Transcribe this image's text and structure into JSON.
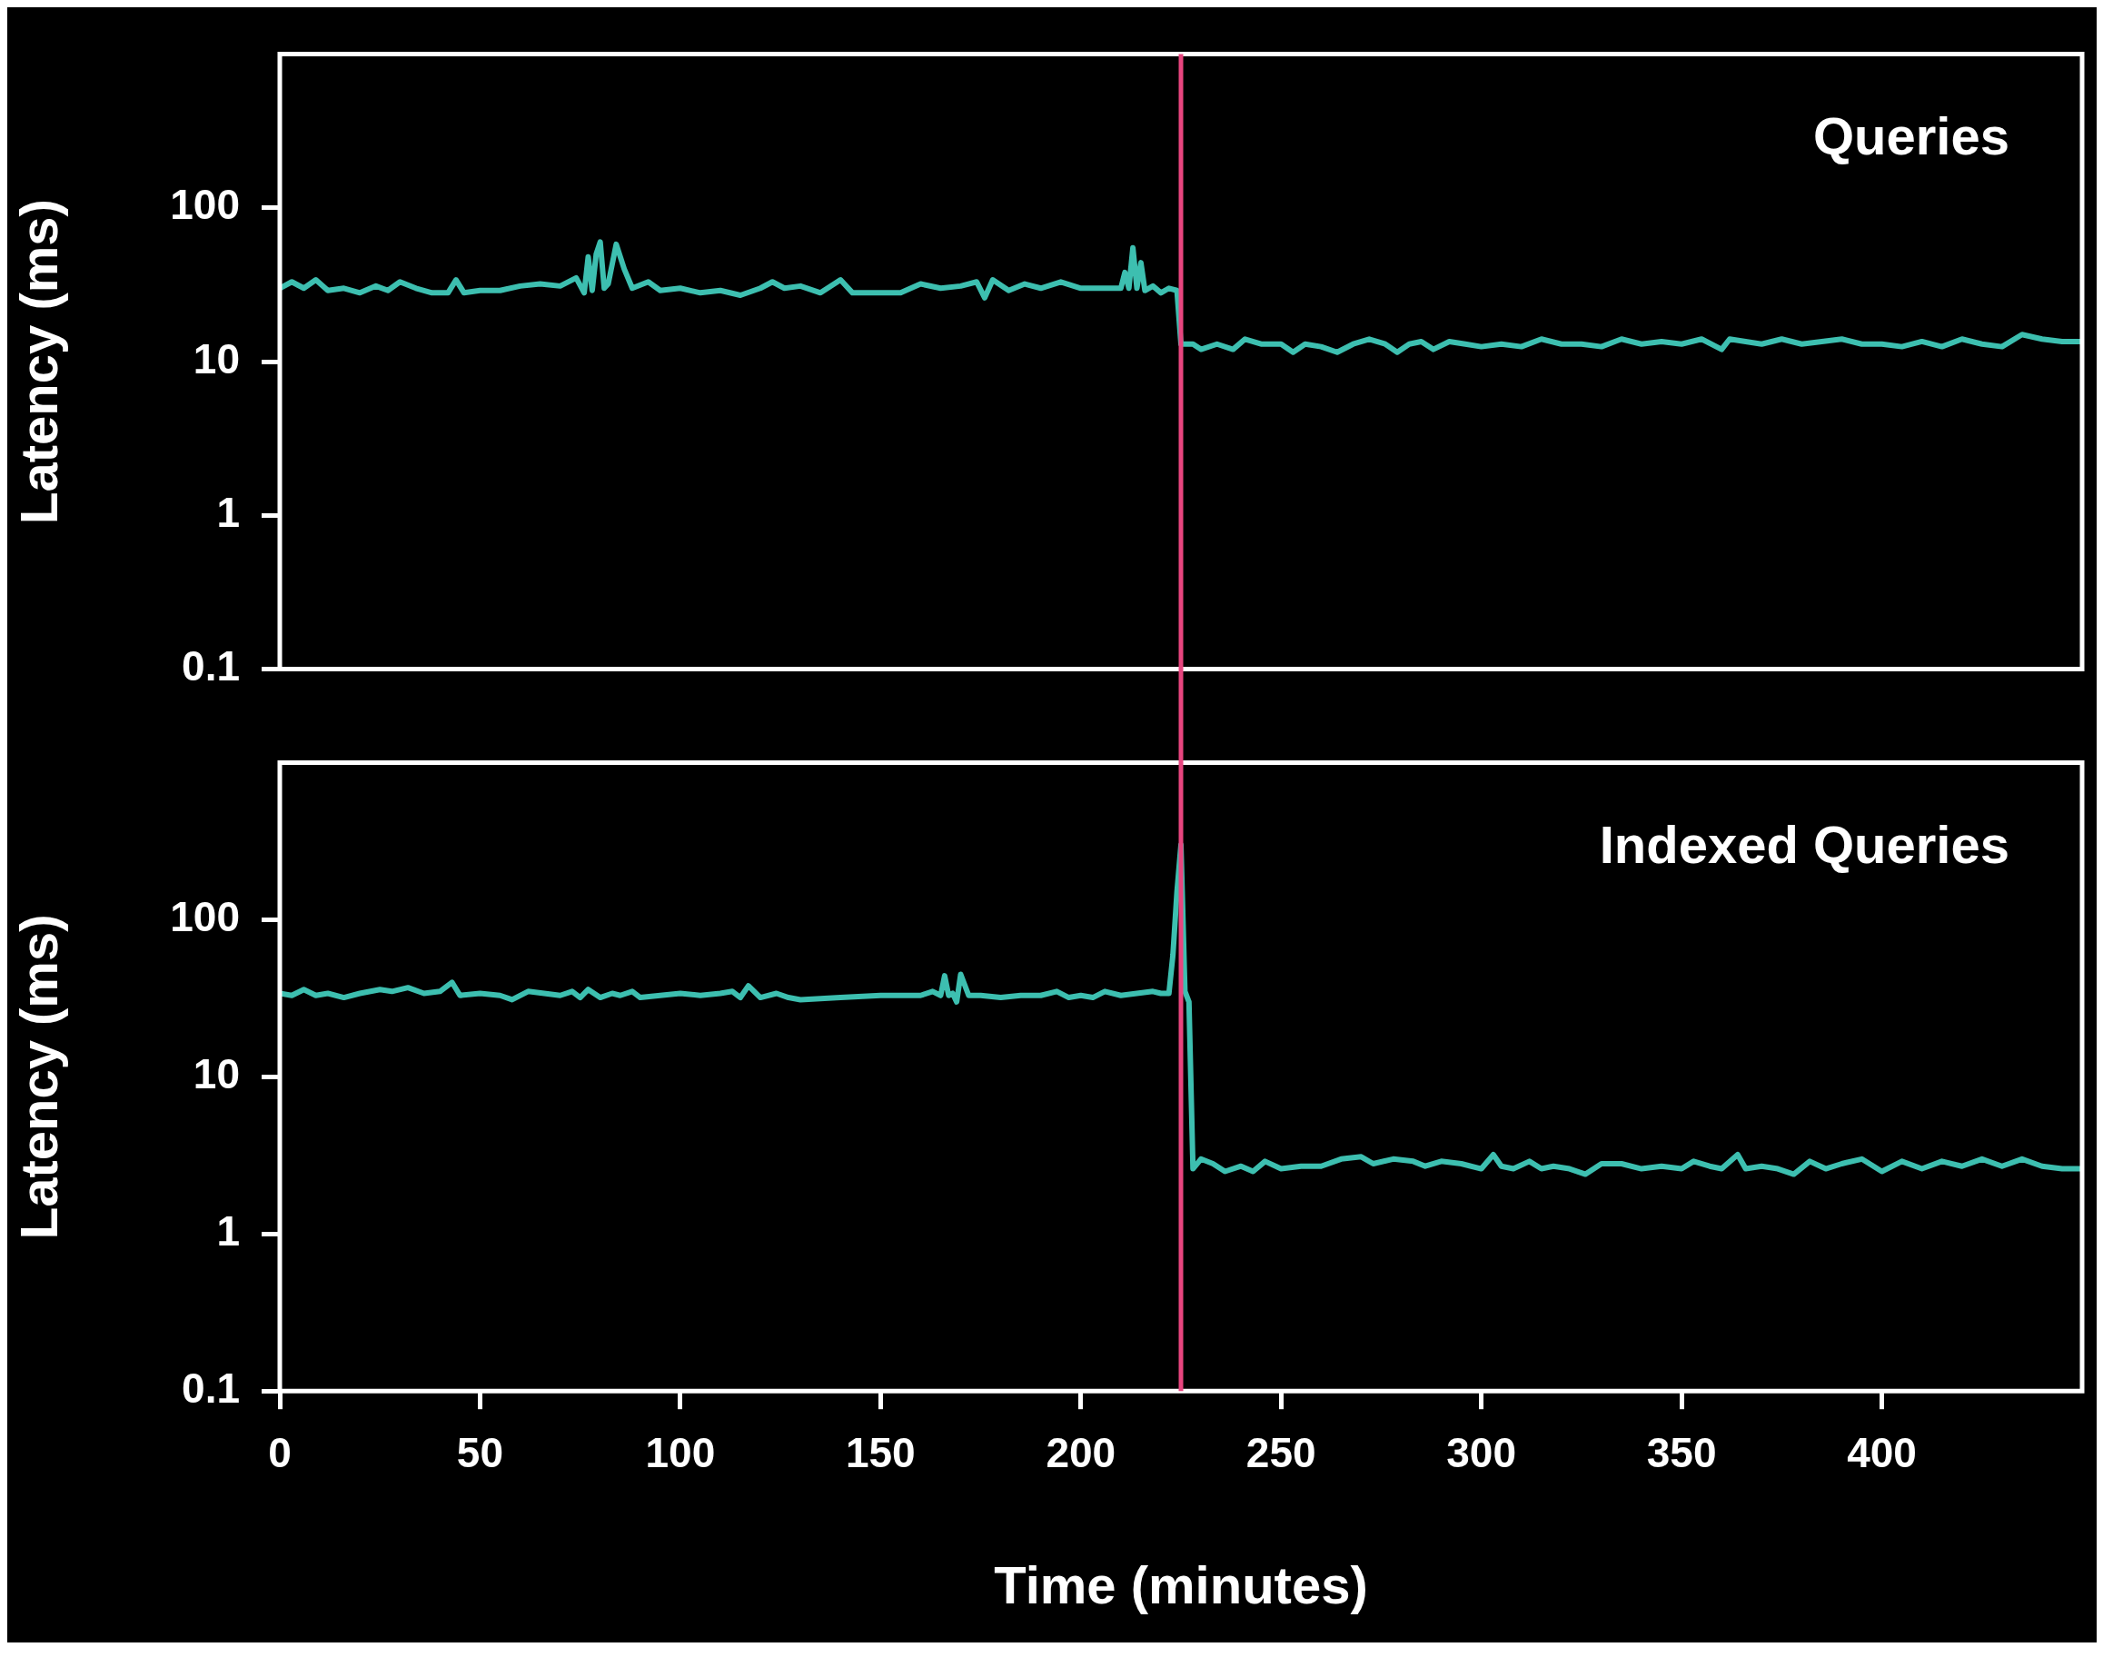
{
  "chart_data": [
    {
      "type": "line",
      "title": "Queries",
      "ylabel": "Latency (ms)",
      "log": "y",
      "xlim": [
        0,
        450
      ],
      "xticks": [
        0,
        50,
        100,
        150,
        200,
        250,
        300,
        350,
        400
      ],
      "ylim": [
        0.1,
        1000
      ],
      "yticks": [
        0.1,
        1,
        10,
        100
      ],
      "tick_labels": "y",
      "ref_lines": [
        {
          "axis": "x",
          "value": 225,
          "color": "#e8457f"
        }
      ],
      "series": [
        {
          "color": "#3dbfb0",
          "x": [
            0,
            3,
            6,
            9,
            12,
            16,
            20,
            24,
            27,
            30,
            34,
            38,
            42,
            44,
            46,
            50,
            55,
            60,
            65,
            70,
            74,
            76,
            77,
            78,
            79,
            80,
            81,
            82,
            84,
            86,
            88,
            92,
            95,
            100,
            105,
            110,
            115,
            120,
            123,
            126,
            130,
            135,
            140,
            143,
            150,
            155,
            160,
            165,
            170,
            174,
            176,
            178,
            182,
            186,
            190,
            195,
            200,
            205,
            210,
            211,
            212,
            213,
            214,
            215,
            216,
            218,
            220,
            222,
            224,
            225,
            228,
            230,
            234,
            238,
            241,
            245,
            250,
            253,
            256,
            260,
            264,
            268,
            272,
            276,
            279,
            282,
            285,
            288,
            292,
            296,
            300,
            305,
            310,
            315,
            320,
            325,
            330,
            335,
            340,
            345,
            350,
            355,
            360,
            362,
            366,
            370,
            375,
            380,
            385,
            390,
            395,
            400,
            405,
            410,
            415,
            420,
            425,
            430,
            435,
            440,
            445,
            450
          ],
          "values": [
            30,
            33,
            30,
            34,
            29,
            30,
            28,
            31,
            29,
            33,
            30,
            28,
            28,
            34,
            28,
            29,
            29,
            31,
            32,
            31,
            35,
            28,
            48,
            29,
            50,
            60,
            30,
            32,
            58,
            40,
            30,
            33,
            29,
            30,
            28,
            29,
            27,
            30,
            33,
            30,
            31,
            28,
            34,
            28,
            28,
            28,
            32,
            30,
            31,
            33,
            26,
            34,
            29,
            32,
            30,
            33,
            30,
            30,
            30,
            38,
            30,
            55,
            30,
            44,
            29,
            31,
            28,
            30,
            29,
            13,
            13,
            12,
            13,
            12,
            14,
            13,
            13,
            11.5,
            13,
            12.5,
            11.5,
            13,
            14,
            13,
            11.5,
            13,
            13.5,
            12,
            13.5,
            13,
            12.5,
            13,
            12.5,
            14,
            13,
            13,
            12.5,
            14,
            13,
            13.5,
            13,
            14,
            12,
            14,
            13.5,
            13,
            14,
            13,
            13.5,
            14,
            13,
            13,
            12.5,
            13.5,
            12.5,
            14,
            13,
            12.5,
            15,
            14,
            13.5,
            13.5
          ]
        }
      ]
    },
    {
      "type": "line",
      "title": "Indexed Queries",
      "xlabel": "Time (minutes)",
      "ylabel": "Latency (ms)",
      "log": "y",
      "xlim": [
        0,
        450
      ],
      "xticks": [
        0,
        50,
        100,
        150,
        200,
        250,
        300,
        350,
        400
      ],
      "ylim": [
        0.1,
        1000
      ],
      "yticks": [
        0.1,
        1,
        10,
        100
      ],
      "ref_lines": [
        {
          "axis": "x",
          "value": 225,
          "color": "#e8457f"
        }
      ],
      "series": [
        {
          "color": "#3dbfb0",
          "x": [
            0,
            3,
            6,
            9,
            12,
            16,
            20,
            25,
            28,
            32,
            36,
            40,
            43,
            45,
            50,
            55,
            58,
            62,
            66,
            70,
            73,
            75,
            77,
            80,
            83,
            85,
            88,
            90,
            95,
            100,
            105,
            110,
            113,
            115,
            117,
            120,
            124,
            127,
            130,
            140,
            150,
            160,
            163,
            165,
            166,
            167,
            168,
            169,
            170,
            172,
            175,
            180,
            185,
            190,
            194,
            197,
            200,
            203,
            206,
            210,
            214,
            218,
            220,
            222,
            223,
            224,
            225,
            226,
            227,
            228,
            230,
            233,
            236,
            240,
            243,
            246,
            250,
            255,
            260,
            265,
            270,
            273,
            278,
            283,
            286,
            290,
            295,
            300,
            303,
            305,
            308,
            312,
            315,
            318,
            322,
            326,
            330,
            335,
            340,
            345,
            350,
            353,
            357,
            360,
            364,
            366,
            370,
            374,
            378,
            382,
            386,
            390,
            395,
            400,
            405,
            410,
            415,
            420,
            425,
            430,
            435,
            440,
            445,
            450
          ],
          "values": [
            34,
            33,
            36,
            33,
            34,
            32,
            34,
            36,
            35,
            37,
            34,
            35,
            40,
            33,
            34,
            33,
            31,
            35,
            34,
            33,
            35,
            32,
            36,
            32,
            34,
            33,
            35,
            32,
            33,
            34,
            33,
            34,
            35,
            32,
            38,
            32,
            34,
            32,
            31,
            32,
            33,
            33,
            35,
            33,
            44,
            33,
            34,
            30,
            45,
            33,
            33,
            32,
            33,
            33,
            35,
            32,
            33,
            32,
            35,
            33,
            34,
            35,
            34,
            34,
            60,
            150,
            300,
            35,
            30,
            2.6,
            3,
            2.8,
            2.5,
            2.7,
            2.5,
            2.9,
            2.6,
            2.7,
            2.7,
            3,
            3.1,
            2.8,
            3,
            2.9,
            2.7,
            2.9,
            2.8,
            2.6,
            3.2,
            2.7,
            2.6,
            2.9,
            2.6,
            2.7,
            2.6,
            2.4,
            2.8,
            2.8,
            2.6,
            2.7,
            2.6,
            2.9,
            2.7,
            2.6,
            3.2,
            2.6,
            2.7,
            2.6,
            2.4,
            2.9,
            2.6,
            2.8,
            3,
            2.5,
            2.9,
            2.6,
            2.9,
            2.7,
            3,
            2.7,
            3,
            2.7,
            2.6,
            2.6
          ]
        }
      ]
    }
  ]
}
